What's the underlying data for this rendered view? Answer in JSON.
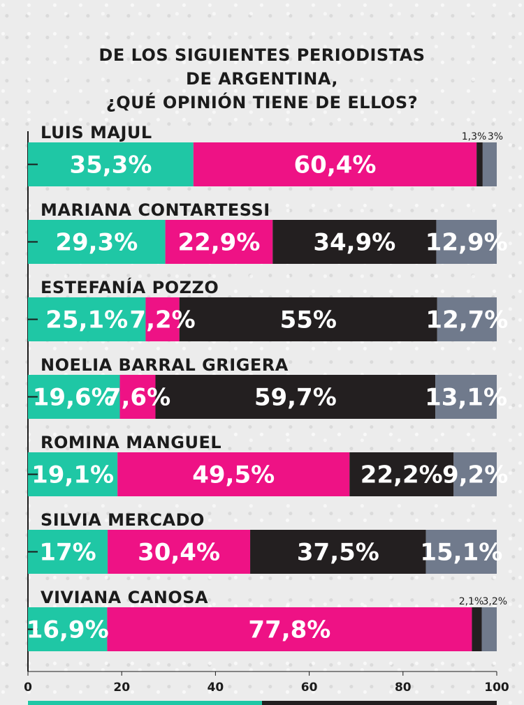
{
  "title_lines": [
    "DE LOS SIGUIENTES PERIODISTAS",
    "DE ARGENTINA,",
    "¿QUÉ OPINIÓN TIENE DE ELLOS?"
  ],
  "colors": {
    "teal": "#1fc7a5",
    "magenta": "#ee1285",
    "black": "#231f20",
    "gray": "#707a8c"
  },
  "chart_data": {
    "type": "bar",
    "orientation": "horizontal",
    "stacked": true,
    "title": "DE LOS SIGUIENTES PERIODISTAS DE ARGENTINA, ¿QUÉ OPINIÓN TIENE DE ELLOS?",
    "categories": [
      "LUIS MAJUL",
      "MARIANA CONTARTESSI",
      "ESTEFANÍA POZZO",
      "NOELIA BARRAL GRIGERA",
      "ROMINA MANGUEL",
      "SILVIA MERCADO",
      "VIVIANA CANOSA"
    ],
    "series": [
      {
        "color": "#1fc7a5",
        "values": [
          35.3,
          29.3,
          25.1,
          19.6,
          19.1,
          17,
          16.9
        ],
        "labels": [
          "35,3%",
          "29,3%",
          "25,1%",
          "19,6%",
          "19,1%",
          "17%",
          "16,9%"
        ]
      },
      {
        "color": "#ee1285",
        "values": [
          60.4,
          22.9,
          7.2,
          7.6,
          49.5,
          30.4,
          77.8
        ],
        "labels": [
          "60,4%",
          "22,9%",
          "7,2%",
          "7,6%",
          "49,5%",
          "30,4%",
          "77,8%"
        ]
      },
      {
        "color": "#231f20",
        "values": [
          1.3,
          34.9,
          55,
          59.7,
          22.2,
          37.5,
          2.1
        ],
        "labels": [
          "1,3%",
          "34,9%",
          "55%",
          "59,7%",
          "22,2%",
          "37,5%",
          "2,1%"
        ]
      },
      {
        "color": "#707a8c",
        "values": [
          3,
          12.9,
          12.7,
          13.1,
          9.2,
          15.1,
          3.2
        ],
        "labels": [
          "3%",
          "12,9%",
          "12,7%",
          "13,1%",
          "9,2%",
          "15,1%",
          "3,2%"
        ]
      }
    ],
    "xlim": [
      0,
      100
    ],
    "xticks": [
      0,
      20,
      40,
      60,
      80,
      100
    ],
    "xtick_labels": [
      "0",
      "20",
      "40",
      "60",
      "80",
      "100"
    ]
  }
}
